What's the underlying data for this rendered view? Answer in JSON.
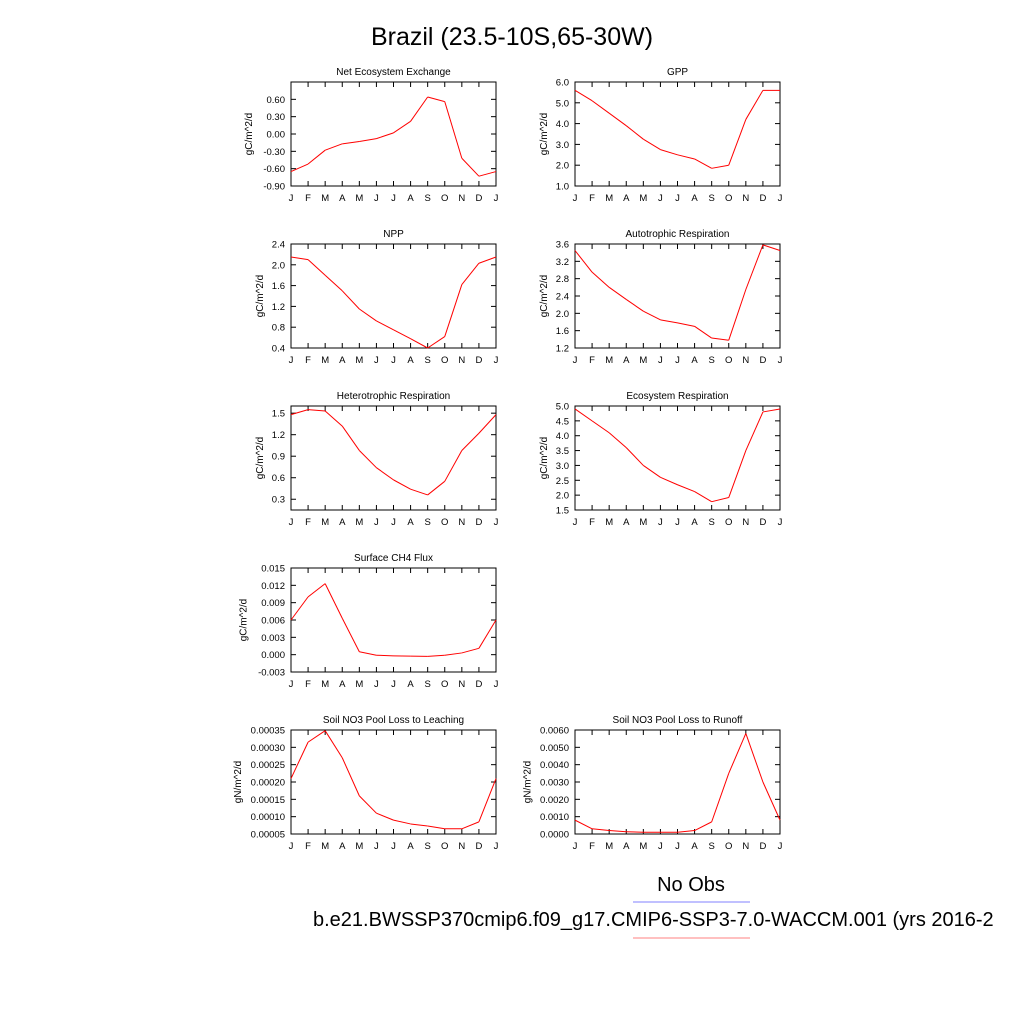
{
  "title": "Brazil (23.5-10S,65-30W)",
  "months": [
    "J",
    "F",
    "M",
    "A",
    "M",
    "J",
    "J",
    "A",
    "S",
    "O",
    "N",
    "D",
    "J"
  ],
  "legend": {
    "obs_label": "No Obs",
    "obs_color": "#8080ff",
    "model_label": "b.e21.BWSSP370cmip6.f09_g17.CMIP6-SSP3-7.0-WACCM.001 (yrs 2016-2",
    "model_color": "#ff8080"
  },
  "line_color": "#ff0000",
  "chart_data": [
    {
      "type": "line",
      "title": "Net Ecosystem Exchange",
      "ylabel": "gC/m^2/d",
      "ylim": [
        -0.9,
        0.9
      ],
      "yticks": [
        -0.9,
        -0.6,
        -0.3,
        0.0,
        0.3,
        0.6
      ],
      "yticklabels": [
        "-0.90",
        "-0.60",
        "-0.30",
        "0.00",
        "0.30",
        "0.60"
      ],
      "x": [
        "J",
        "F",
        "M",
        "A",
        "M",
        "J",
        "J",
        "A",
        "S",
        "O",
        "N",
        "D",
        "J"
      ],
      "values": [
        -0.65,
        -0.52,
        -0.28,
        -0.17,
        -0.13,
        -0.08,
        0.02,
        0.22,
        0.64,
        0.56,
        -0.42,
        -0.73,
        -0.65
      ]
    },
    {
      "type": "line",
      "title": "GPP",
      "ylabel": "gC/m^2/d",
      "ylim": [
        1.0,
        6.0
      ],
      "yticks": [
        1,
        2,
        3,
        4,
        5,
        6
      ],
      "yticklabels": [
        "1.0",
        "2.0",
        "3.0",
        "4.0",
        "5.0",
        "6.0"
      ],
      "x": [
        "J",
        "F",
        "M",
        "A",
        "M",
        "J",
        "J",
        "A",
        "S",
        "O",
        "N",
        "D",
        "J"
      ],
      "values": [
        5.6,
        5.1,
        4.5,
        3.9,
        3.25,
        2.75,
        2.5,
        2.3,
        1.85,
        2.0,
        4.2,
        5.6,
        5.6
      ]
    },
    {
      "type": "line",
      "title": "NPP",
      "ylabel": "gC/m^2/d",
      "ylim": [
        0.4,
        2.4
      ],
      "yticks": [
        0.4,
        0.8,
        1.2,
        1.6,
        2.0,
        2.4
      ],
      "yticklabels": [
        "0.4",
        "0.8",
        "1.2",
        "1.6",
        "2.0",
        "2.4"
      ],
      "x": [
        "J",
        "F",
        "M",
        "A",
        "M",
        "J",
        "J",
        "A",
        "S",
        "O",
        "N",
        "D",
        "J"
      ],
      "values": [
        2.15,
        2.1,
        1.8,
        1.5,
        1.15,
        0.92,
        0.75,
        0.58,
        0.4,
        0.62,
        1.62,
        2.03,
        2.15
      ]
    },
    {
      "type": "line",
      "title": "Autotrophic Respiration",
      "ylabel": "gC/m^2/d",
      "ylim": [
        1.2,
        3.6
      ],
      "yticks": [
        1.2,
        1.6,
        2.0,
        2.4,
        2.8,
        3.2,
        3.6
      ],
      "yticklabels": [
        "1.2",
        "1.6",
        "2.0",
        "2.4",
        "2.8",
        "3.2",
        "3.6"
      ],
      "x": [
        "J",
        "F",
        "M",
        "A",
        "M",
        "J",
        "J",
        "A",
        "S",
        "O",
        "N",
        "D",
        "J"
      ],
      "values": [
        3.45,
        2.95,
        2.6,
        2.32,
        2.05,
        1.85,
        1.78,
        1.7,
        1.43,
        1.38,
        2.55,
        3.58,
        3.45
      ]
    },
    {
      "type": "line",
      "title": "Heterotrophic Respiration",
      "ylabel": "gC/m^2/d",
      "ylim": [
        0.15,
        1.6
      ],
      "yticks": [
        0.3,
        0.6,
        0.9,
        1.2,
        1.5
      ],
      "yticklabels": [
        "0.3",
        "0.6",
        "0.9",
        "1.2",
        "1.5"
      ],
      "x": [
        "J",
        "F",
        "M",
        "A",
        "M",
        "J",
        "J",
        "A",
        "S",
        "O",
        "N",
        "D",
        "J"
      ],
      "values": [
        1.48,
        1.55,
        1.53,
        1.32,
        0.98,
        0.74,
        0.57,
        0.44,
        0.36,
        0.55,
        0.98,
        1.22,
        1.48
      ]
    },
    {
      "type": "line",
      "title": "Ecosystem Respiration",
      "ylabel": "gC/m^2/d",
      "ylim": [
        1.5,
        5.0
      ],
      "yticks": [
        1.5,
        2.0,
        2.5,
        3.0,
        3.5,
        4.0,
        4.5,
        5.0
      ],
      "yticklabels": [
        "1.5",
        "2.0",
        "2.5",
        "3.0",
        "3.5",
        "4.0",
        "4.5",
        "5.0"
      ],
      "x": [
        "J",
        "F",
        "M",
        "A",
        "M",
        "J",
        "J",
        "A",
        "S",
        "O",
        "N",
        "D",
        "J"
      ],
      "values": [
        4.9,
        4.5,
        4.1,
        3.6,
        3.0,
        2.6,
        2.35,
        2.12,
        1.78,
        1.92,
        3.5,
        4.8,
        4.9
      ]
    },
    {
      "type": "line",
      "title": "Surface CH4 Flux",
      "ylabel": "gC/m^2/d",
      "ylim": [
        -0.003,
        0.015
      ],
      "yticks": [
        -0.003,
        0.0,
        0.003,
        0.006,
        0.009,
        0.012,
        0.015
      ],
      "yticklabels": [
        "-0.003",
        "0.000",
        "0.003",
        "0.006",
        "0.009",
        "0.012",
        "0.015"
      ],
      "x": [
        "J",
        "F",
        "M",
        "A",
        "M",
        "J",
        "J",
        "A",
        "S",
        "O",
        "N",
        "D",
        "J"
      ],
      "values": [
        0.006,
        0.01,
        0.0123,
        0.0063,
        0.0005,
        -0.0001,
        -0.0002,
        -0.00025,
        -0.0003,
        -0.0001,
        0.0003,
        0.0011,
        0.006
      ]
    },
    {
      "type": "line",
      "title": "Soil NO3 Pool Loss to Leaching",
      "ylabel": "gN/m^2/d",
      "ylim": [
        5e-05,
        0.00035
      ],
      "yticks": [
        5e-05,
        0.0001,
        0.00015,
        0.0002,
        0.00025,
        0.0003,
        0.00035
      ],
      "yticklabels": [
        "0.00005",
        "0.00010",
        "0.00015",
        "0.00020",
        "0.00025",
        "0.00030",
        "0.00035"
      ],
      "x": [
        "J",
        "F",
        "M",
        "A",
        "M",
        "J",
        "J",
        "A",
        "S",
        "O",
        "N",
        "D",
        "J"
      ],
      "values": [
        0.00021,
        0.000315,
        0.000348,
        0.00027,
        0.00016,
        0.00011,
        9e-05,
        7.9e-05,
        7.3e-05,
        6.5e-05,
        6.5e-05,
        8.5e-05,
        0.00021
      ]
    },
    {
      "type": "line",
      "title": "Soil NO3 Pool Loss to Runoff",
      "ylabel": "gN/m^2/d",
      "ylim": [
        0.0,
        0.006
      ],
      "yticks": [
        0.0,
        0.001,
        0.002,
        0.003,
        0.004,
        0.005,
        0.006
      ],
      "yticklabels": [
        "0.0000",
        "0.0010",
        "0.0020",
        "0.0030",
        "0.0040",
        "0.0050",
        "0.0060"
      ],
      "x": [
        "J",
        "F",
        "M",
        "A",
        "M",
        "J",
        "J",
        "A",
        "S",
        "O",
        "N",
        "D",
        "J"
      ],
      "values": [
        0.0008,
        0.0003,
        0.0002,
        0.00013,
        0.0001,
        0.0001,
        0.0001,
        0.0002,
        0.0007,
        0.0035,
        0.0058,
        0.003,
        0.0008
      ]
    }
  ]
}
